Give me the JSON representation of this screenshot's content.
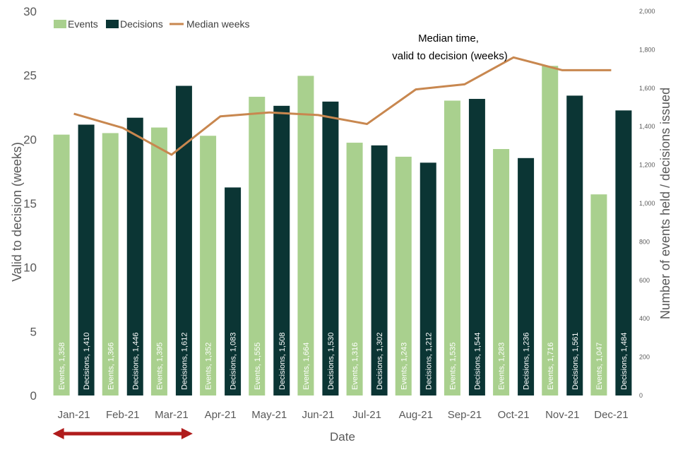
{
  "chart_data": {
    "type": "bar",
    "categories": [
      "Jan-21",
      "Feb-21",
      "Mar-21",
      "Apr-21",
      "May-21",
      "Jun-21",
      "Jul-21",
      "Aug-21",
      "Sep-21",
      "Oct-21",
      "Nov-21",
      "Dec-21"
    ],
    "series": [
      {
        "name": "Events",
        "kind": "bar",
        "axis": "right",
        "color": "#a9d08e",
        "values": [
          1358,
          1366,
          1395,
          1352,
          1555,
          1664,
          1316,
          1243,
          1535,
          1283,
          1716,
          1047
        ],
        "labels": [
          "Events, 1,358",
          "Events, 1,366",
          "Events, 1,395",
          "Events, 1,352",
          "Events, 1,555",
          "Events, 1,664",
          "Events, 1,316",
          "Events, 1,243",
          "Events, 1,535",
          "Events, 1,283",
          "Events, 1,716",
          "Events, 1,047"
        ]
      },
      {
        "name": "Decisions",
        "kind": "bar",
        "axis": "right",
        "color": "#0b3534",
        "values": [
          1410,
          1446,
          1612,
          1083,
          1508,
          1530,
          1302,
          1212,
          1544,
          1236,
          1561,
          1484
        ],
        "labels": [
          "Decisions, 1,410",
          "Decisions, 1,446",
          "Decisions, 1,612",
          "Decisions, 1,083",
          "Decisions, 1,508",
          "Decisions, 1,530",
          "Decisions, 1,302",
          "Decisions, 1,212",
          "Decisions, 1,544",
          "Decisions, 1,236",
          "Decisions, 1,561",
          "Decisions, 1,484"
        ]
      },
      {
        "name": "Median weeks",
        "kind": "line",
        "axis": "left",
        "color": "#c8874f",
        "values": [
          22.0,
          20.9,
          18.8,
          21.8,
          22.1,
          21.9,
          21.2,
          23.9,
          24.3,
          26.4,
          25.4,
          25.4
        ]
      }
    ],
    "xlabel": "Date",
    "ylabel": "Valid to decision (weeks)",
    "y2label": "Number of events held / decisions issued",
    "ylim": [
      0,
      30
    ],
    "y2lim": [
      0,
      2000
    ],
    "yticks": [
      "0",
      "5",
      "10",
      "15",
      "20",
      "25",
      "30"
    ],
    "y2ticks": [
      "0",
      "200",
      "400",
      "600",
      "800",
      "1,000",
      "1,200",
      "1,400",
      "1,600",
      "1,800",
      "2,000"
    ],
    "annotation": [
      "Median time,",
      "valid to decision (weeks)"
    ],
    "arrow_span": [
      "Jan-21",
      "Mar-21"
    ],
    "arrow_color": "#b01c1c",
    "legend_position": "top-left",
    "grid": false
  }
}
